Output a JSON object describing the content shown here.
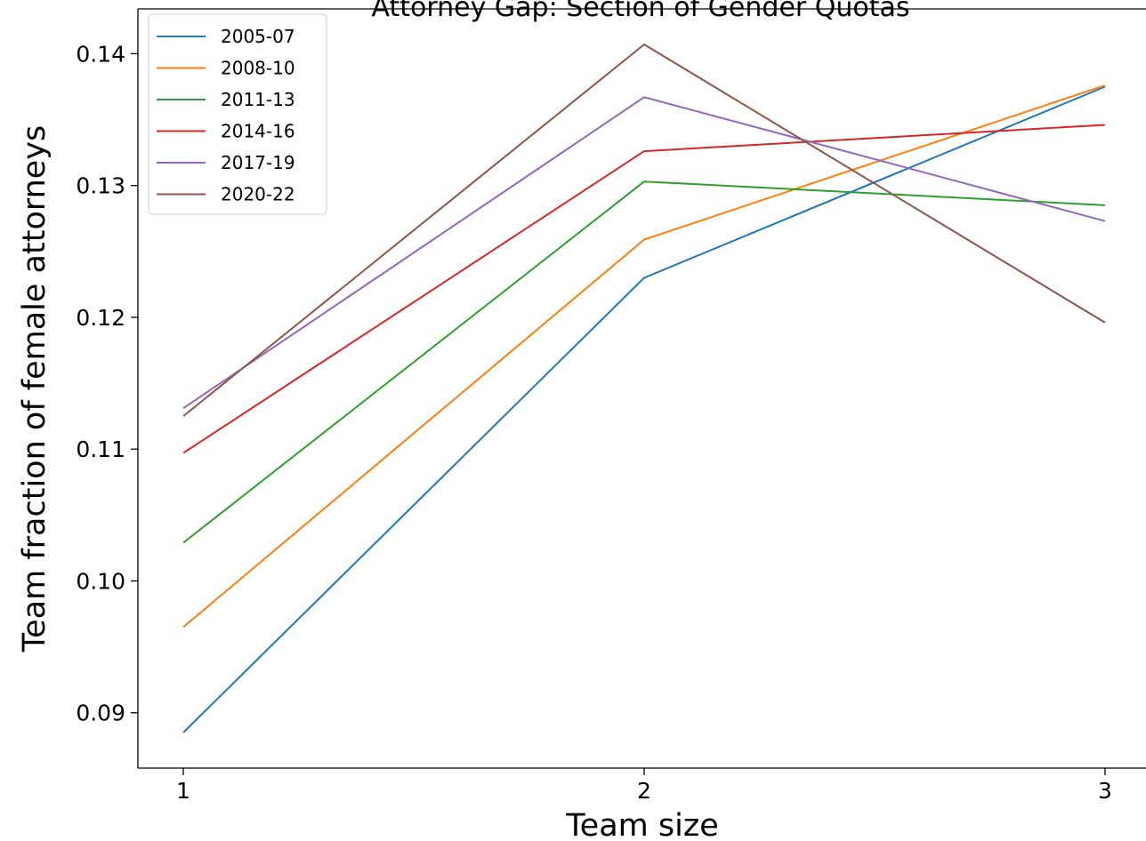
{
  "chart_data": {
    "type": "line",
    "title": "Attorney Gap: Section of Gender Quotas",
    "xlabel": "Team size",
    "ylabel": "Team fraction of female attorneys",
    "x": [
      1,
      2,
      3
    ],
    "xticks": [
      "1",
      "2",
      "3"
    ],
    "yticks": [
      "0.09",
      "0.10",
      "0.11",
      "0.12",
      "0.13",
      "0.14"
    ],
    "ylim": [
      0.0858,
      0.1434
    ],
    "xlim": [
      0.9,
      3.05
    ],
    "grid": false,
    "legend_position": "top-left",
    "series": [
      {
        "name": "2005-07",
        "color": "#1f77b4",
        "values": [
          0.0885,
          0.123,
          0.1375
        ]
      },
      {
        "name": "2008-10",
        "color": "#ff7f0e",
        "values": [
          0.0965,
          0.1259,
          0.1376
        ]
      },
      {
        "name": "2011-13",
        "color": "#2ca02c",
        "values": [
          0.1029,
          0.1303,
          0.1285
        ]
      },
      {
        "name": "2014-16",
        "color": "#d62728",
        "values": [
          0.1097,
          0.1326,
          0.1346
        ]
      },
      {
        "name": "2017-19",
        "color": "#9467bd",
        "values": [
          0.1131,
          0.1367,
          0.1273
        ]
      },
      {
        "name": "2020-22",
        "color": "#8c564b",
        "values": [
          0.1125,
          0.1407,
          0.1196
        ]
      }
    ]
  }
}
